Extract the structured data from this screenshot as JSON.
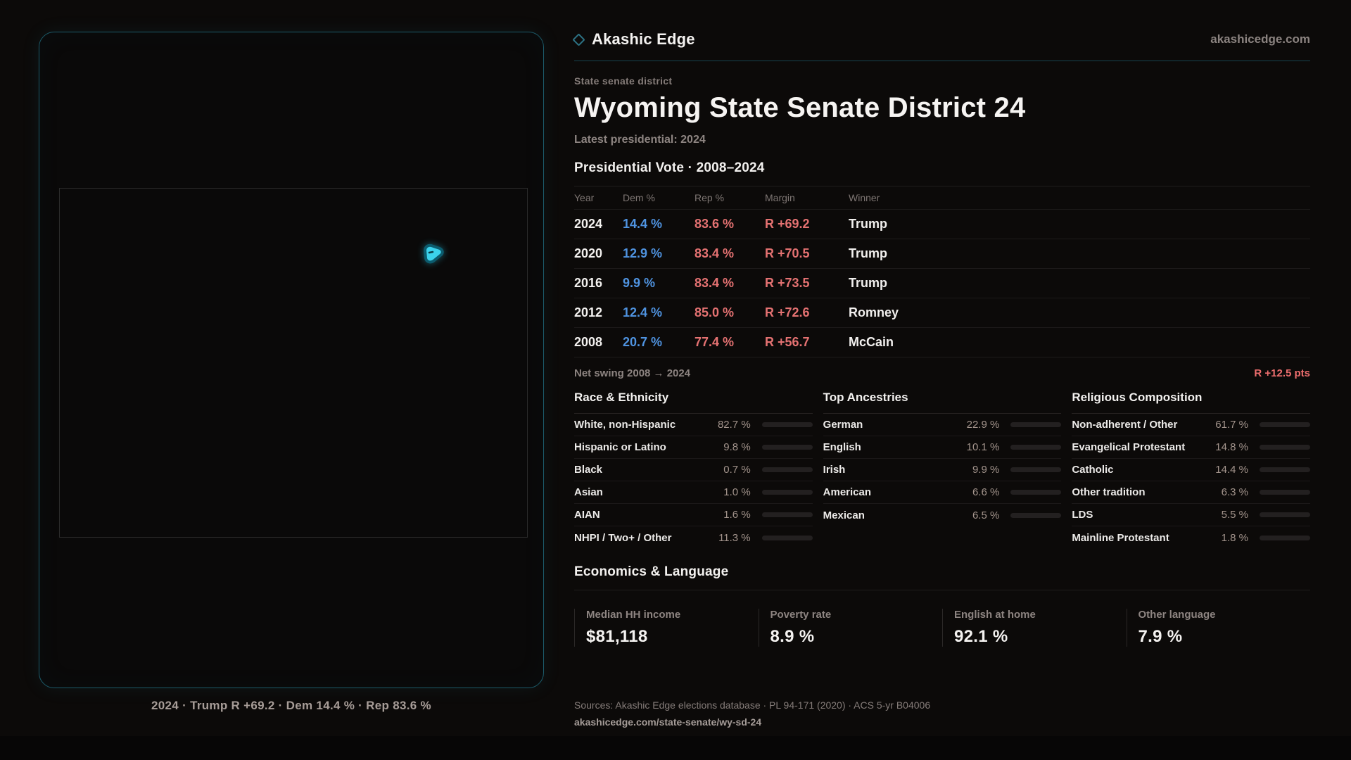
{
  "brand": {
    "name": "Akashic Edge",
    "domain": "akashicedge.com"
  },
  "map": {
    "caption": "2024 · Trump R +69.2 · Dem 14.4 % · Rep 83.6 %",
    "district_color": "#3bd2ec",
    "district_outline": "#0c5b6d",
    "panel_border": "#1c5a69",
    "state_outline": "#2b2b2b"
  },
  "header": {
    "kicker": "State senate district",
    "title": "Wyoming State Senate District 24",
    "latest": "Latest presidential: 2024"
  },
  "vote_table": {
    "title": "Presidential Vote · 2008–2024",
    "columns": {
      "year": "Year",
      "dem": "Dem %",
      "rep": "Rep %",
      "margin": "Margin",
      "winner": "Winner"
    },
    "rows": [
      {
        "year": "2024",
        "dem": "14.4 %",
        "rep": "83.6 %",
        "margin": "R +69.2",
        "winner": "Trump"
      },
      {
        "year": "2020",
        "dem": "12.9 %",
        "rep": "83.4 %",
        "margin": "R +70.5",
        "winner": "Trump"
      },
      {
        "year": "2016",
        "dem": "9.9 %",
        "rep": "83.4 %",
        "margin": "R +73.5",
        "winner": "Trump"
      },
      {
        "year": "2012",
        "dem": "12.4 %",
        "rep": "85.0 %",
        "margin": "R +72.6",
        "winner": "Romney"
      },
      {
        "year": "2008",
        "dem": "20.7 %",
        "rep": "77.4 %",
        "margin": "R +56.7",
        "winner": "McCain"
      }
    ],
    "net_swing_label": "Net swing 2008 → 2024",
    "net_swing_value": "R +12.5 pts",
    "dem_color": "#4f93e0",
    "rep_color": "#e57272"
  },
  "demographics": {
    "race": {
      "title": "Race & Ethnicity",
      "rows": [
        {
          "label": "White, non-Hispanic",
          "value": "82.7 %",
          "pct": 82.7
        },
        {
          "label": "Hispanic or Latino",
          "value": "9.8 %",
          "pct": 9.8
        },
        {
          "label": "Black",
          "value": "0.7 %",
          "pct": 0.7
        },
        {
          "label": "Asian",
          "value": "1.0 %",
          "pct": 1.0
        },
        {
          "label": "AIAN",
          "value": "1.6 %",
          "pct": 1.6
        },
        {
          "label": "NHPI / Two+ / Other",
          "value": "11.3 %",
          "pct": 11.3
        }
      ]
    },
    "ancestries": {
      "title": "Top Ancestries",
      "rows": [
        {
          "label": "German",
          "value": "22.9 %",
          "pct": 22.9
        },
        {
          "label": "English",
          "value": "10.1 %",
          "pct": 10.1
        },
        {
          "label": "Irish",
          "value": "9.9 %",
          "pct": 9.9
        },
        {
          "label": "American",
          "value": "6.6 %",
          "pct": 6.6
        },
        {
          "label": "Mexican",
          "value": "6.5 %",
          "pct": 6.5
        }
      ]
    },
    "religion": {
      "title": "Religious Composition",
      "rows": [
        {
          "label": "Non-adherent / Other",
          "value": "61.7 %",
          "pct": 61.7
        },
        {
          "label": "Evangelical Protestant",
          "value": "14.8 %",
          "pct": 14.8
        },
        {
          "label": "Catholic",
          "value": "14.4 %",
          "pct": 14.4
        },
        {
          "label": "Other tradition",
          "value": "6.3 %",
          "pct": 6.3
        },
        {
          "label": "LDS",
          "value": "5.5 %",
          "pct": 5.5
        },
        {
          "label": "Mainline Protestant",
          "value": "1.8 %",
          "pct": 1.8
        }
      ]
    }
  },
  "economics": {
    "title": "Economics & Language",
    "stats": [
      {
        "label": "Median HH income",
        "value": "$81,118"
      },
      {
        "label": "Poverty rate",
        "value": "8.9 %"
      },
      {
        "label": "English at home",
        "value": "92.1 %"
      },
      {
        "label": "Other language",
        "value": "7.9 %"
      }
    ]
  },
  "footer": {
    "sources": "Sources: Akashic Edge elections database · PL 94-171 (2020) · ACS 5-yr B04006",
    "permalink": "akashicedge.com/state-senate/wy-sd-24"
  }
}
